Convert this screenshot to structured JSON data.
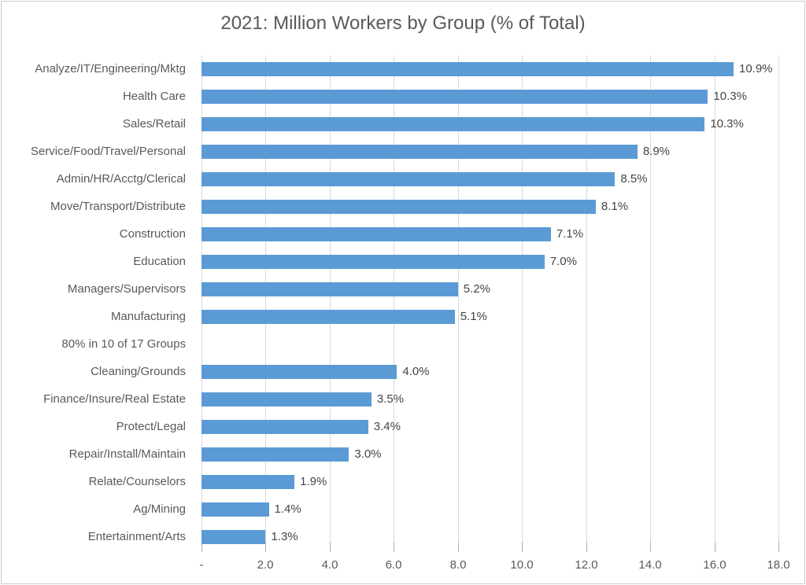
{
  "chart_data": {
    "type": "bar",
    "orientation": "horizontal",
    "title": "2021: Million Workers by Group (% of Total)",
    "categories": [
      "Analyze/IT/Engineering/Mktg",
      "Health Care",
      "Sales/Retail",
      "Service/Food/Travel/Personal",
      "Admin/HR/Acctg/Clerical",
      "Move/Transport/Distribute",
      "Construction",
      "Education",
      "Managers/Supervisors",
      "Manufacturing",
      "80% in 10 of 17 Groups",
      "Cleaning/Grounds",
      "Finance/Insure/Real Estate",
      "Protect/Legal",
      "Repair/Install/Maintain",
      "Relate/Counselors",
      "Ag/Mining",
      "Entertainment/Arts"
    ],
    "values_millions": [
      16.6,
      15.8,
      15.7,
      13.6,
      12.9,
      12.3,
      10.9,
      10.7,
      8.0,
      7.9,
      0,
      6.1,
      5.3,
      5.2,
      4.6,
      2.9,
      2.1,
      2.0
    ],
    "value_labels": [
      "10.9%",
      "10.3%",
      "10.3%",
      "8.9%",
      "8.5%",
      "8.1%",
      "7.1%",
      "7.0%",
      "5.2%",
      "5.1%",
      "",
      "4.0%",
      "3.5%",
      "3.4%",
      "3.0%",
      "1.9%",
      "1.4%",
      "1.3%"
    ],
    "xlim": [
      0,
      18
    ],
    "x_ticks": [
      "-",
      "2.0",
      "4.0",
      "6.0",
      "8.0",
      "10.0",
      "12.0",
      "14.0",
      "16.0",
      "18.0"
    ],
    "x_tick_values": [
      0,
      2,
      4,
      6,
      8,
      10,
      12,
      14,
      16,
      18
    ],
    "grid": true,
    "legend": "none",
    "colors": {
      "bar": "#5B9BD5",
      "gridline": "#D9D9D9",
      "tick": "#ABABAB",
      "title_text": "#595959",
      "axis_text": "#595959",
      "value_text": "#444444",
      "frame_border": "#CBCBCB"
    }
  }
}
